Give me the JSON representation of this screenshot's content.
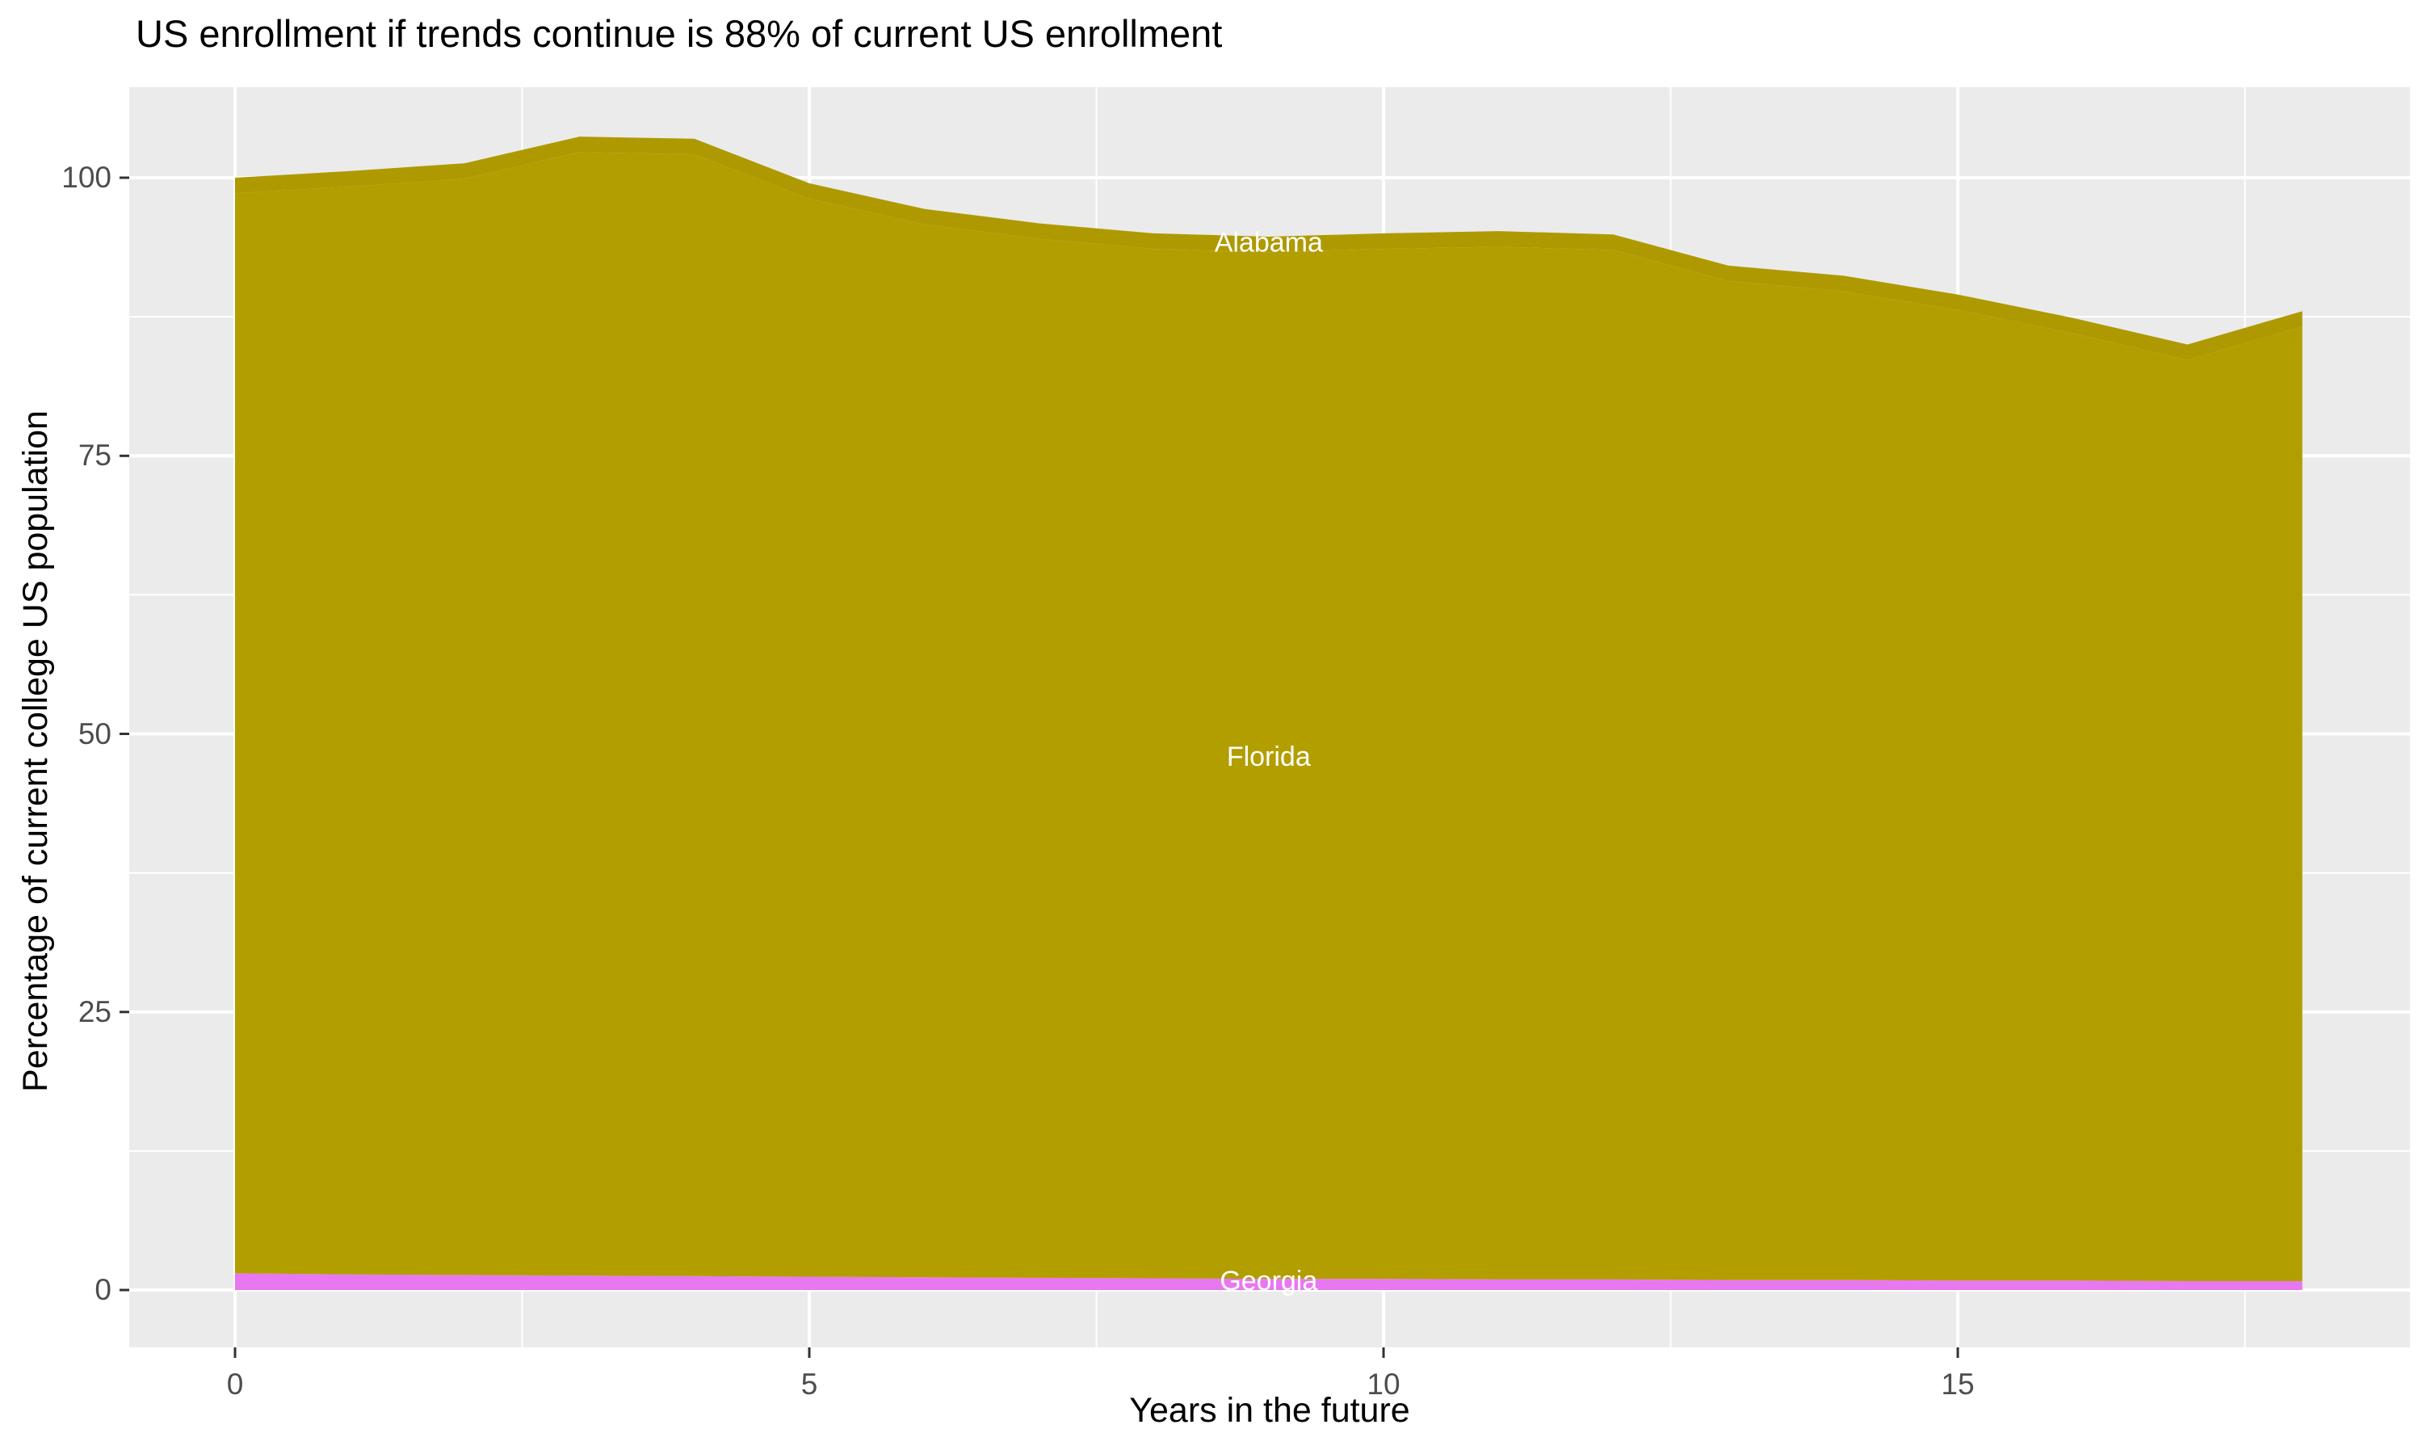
{
  "title": "US enrollment if trends continue is 88% of current US enrollment",
  "colors": {
    "background": "#FFFFFF",
    "panel": "#EBEBEB",
    "grid": "#FFFFFF",
    "tick_mark": "#333333",
    "tick_label": "#4D4D4D",
    "title_text": "#000000",
    "area_label_text": "#FFFFFF"
  },
  "chart_data": {
    "type": "area",
    "stacked": true,
    "stacking_order": "bottom_to_top",
    "title": "US enrollment if trends continue is 88% of current US enrollment",
    "xlabel": "Years in the future",
    "ylabel": "Percentage of current college US population",
    "x": [
      0,
      1,
      2,
      3,
      4,
      5,
      6,
      7,
      8,
      9,
      10,
      11,
      12,
      13,
      14,
      15,
      16,
      17,
      18
    ],
    "series": [
      {
        "name": "Georgia",
        "color": "#E878F0",
        "values": [
          1.5,
          1.4,
          1.35,
          1.3,
          1.25,
          1.2,
          1.15,
          1.1,
          1.05,
          1.0,
          1.0,
          0.95,
          0.95,
          0.9,
          0.9,
          0.85,
          0.85,
          0.8,
          0.8
        ]
      },
      {
        "name": "Florida",
        "color": "#B39E00",
        "values": [
          97.1,
          97.8,
          98.55,
          101.0,
          100.85,
          96.9,
          94.65,
          93.4,
          92.55,
          92.3,
          92.6,
          92.85,
          92.55,
          89.8,
          88.9,
          87.25,
          85.15,
          82.8,
          85.8
        ]
      },
      {
        "name": "Alabama",
        "color": "#AE9A00",
        "values": [
          1.4,
          1.4,
          1.4,
          1.4,
          1.4,
          1.4,
          1.4,
          1.4,
          1.4,
          1.4,
          1.4,
          1.4,
          1.4,
          1.4,
          1.4,
          1.4,
          1.4,
          1.4,
          1.4
        ]
      }
    ],
    "stack_totals": [
      100,
      100.6,
      101.3,
      103.7,
      103.5,
      99.5,
      97.2,
      95.9,
      95.0,
      94.7,
      95.0,
      95.2,
      94.9,
      92.1,
      91.2,
      89.5,
      87.4,
      85.0,
      88.0
    ],
    "labels": [
      {
        "text": "Alabama",
        "x": 9,
        "y": 94.0
      },
      {
        "text": "Florida",
        "x": 9,
        "y": 47.8
      },
      {
        "text": "Georgia",
        "x": 9,
        "y": 0.65
      }
    ],
    "x_ticks": [
      0,
      5,
      10,
      15
    ],
    "x_minor_ticks": [
      2.5,
      7.5,
      12.5,
      17.5
    ],
    "y_ticks": [
      0,
      25,
      50,
      75,
      100
    ],
    "y_minor_ticks": [
      12.5,
      37.5,
      62.5,
      87.5
    ],
    "xlim": [
      -0.9,
      18.9
    ],
    "ylim": [
      -5.2,
      108.2
    ],
    "grid": "white major and minor gridlines on gray panel",
    "legend_position": "none"
  }
}
